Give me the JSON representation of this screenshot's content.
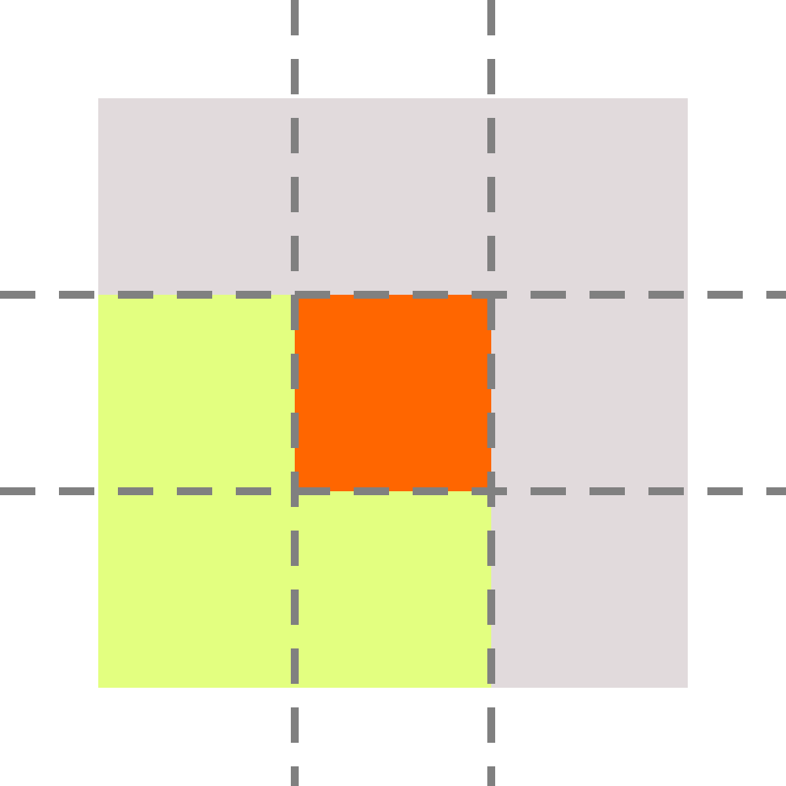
{
  "grid": {
    "rows": 3,
    "cols": 3,
    "cells": [
      [
        "background",
        "background",
        "background"
      ],
      [
        "neighbor",
        "center",
        "background"
      ],
      [
        "neighbor",
        "neighbor",
        "background"
      ]
    ]
  },
  "colors": {
    "page": "#ffffff",
    "background": "#e1dadc",
    "neighbor": "#e3ff80",
    "center": "#ff6600",
    "gridline": "#808080"
  },
  "gridlines": {
    "style": "dashed"
  }
}
